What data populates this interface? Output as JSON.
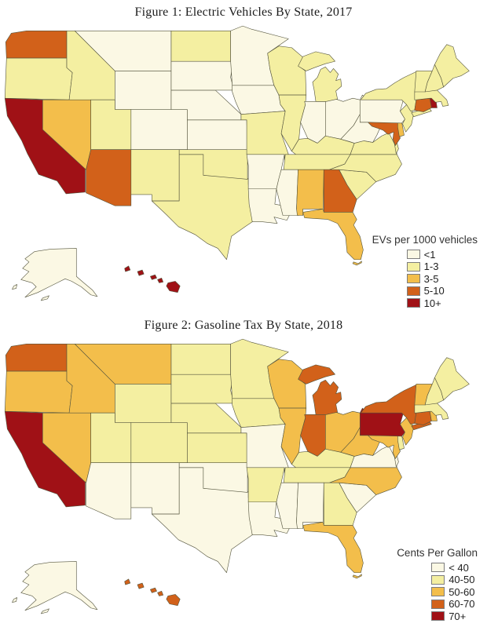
{
  "chart_data": [
    {
      "type": "heatmap",
      "subtype": "us-state-choropleth",
      "title": "Figure 1: Electric Vehicles By State, 2017",
      "legend": {
        "title": "EVs per 1000 vehicles",
        "position": "bottom-right",
        "labels": [
          "<1",
          "1-3",
          "3-5",
          "5-10",
          "10+"
        ],
        "colors": [
          "#FBF8E4",
          "#F4EFA1",
          "#F3BE4B",
          "#D2611A",
          "#A01116"
        ]
      },
      "states": {
        "WA": "5-10",
        "OR": "1-3",
        "CA": "10+",
        "NV": "3-5",
        "ID": "1-3",
        "MT": "<1",
        "WY": "<1",
        "UT": "1-3",
        "CO": "<1",
        "AZ": "5-10",
        "NM": "1-3",
        "ND": "1-3",
        "SD": "<1",
        "NE": "<1",
        "KS": "<1",
        "OK": "1-3",
        "TX": "1-3",
        "MN": "<1",
        "IA": "<1",
        "MO": "1-3",
        "AR": "<1",
        "LA": "<1",
        "WI": "1-3",
        "IL": "1-3",
        "MI": "1-3",
        "IN": "<1",
        "OH": "<1",
        "KY": "1-3",
        "TN": "1-3",
        "MS": "<1",
        "AL": "3-5",
        "GA": "5-10",
        "FL": "3-5",
        "SC": "1-3",
        "NC": "1-3",
        "VA": "1-3",
        "WV": "<1",
        "MD": "5-10",
        "DE": "3-5",
        "NJ": "1-3",
        "PA": "<1",
        "NY": "1-3",
        "VT": "1-3",
        "NH": "1-3",
        "ME": "1-3",
        "MA": "1-3",
        "CT": "5-10",
        "RI": "10+",
        "AK": "<1",
        "HI": "10+"
      }
    },
    {
      "type": "heatmap",
      "subtype": "us-state-choropleth",
      "title": "Figure 2: Gasoline Tax By State, 2018",
      "legend": {
        "title": "Cents Per Gallon",
        "position": "bottom-right",
        "labels": [
          "< 40",
          "40-50",
          "50-60",
          "60-70",
          "70+"
        ],
        "colors": [
          "#FBF8E4",
          "#F4EFA1",
          "#F3BE4B",
          "#D2611A",
          "#A01116"
        ]
      },
      "states": {
        "WA": "60-70",
        "OR": "50-60",
        "CA": "70+",
        "NV": "50-60",
        "ID": "50-60",
        "MT": "50-60",
        "WY": "40-50",
        "UT": "40-50",
        "CO": "40-50",
        "AZ": "< 40",
        "NM": "< 40",
        "ND": "40-50",
        "SD": "40-50",
        "NE": "40-50",
        "KS": "40-50",
        "OK": "< 40",
        "TX": "< 40",
        "MN": "40-50",
        "IA": "40-50",
        "MO": "< 40",
        "AR": "40-50",
        "LA": "< 40",
        "WI": "50-60",
        "IL": "50-60",
        "MI": "60-70",
        "IN": "60-70",
        "OH": "50-60",
        "KY": "40-50",
        "TN": "40-50",
        "MS": "< 40",
        "AL": "< 40",
        "GA": "40-50",
        "FL": "50-60",
        "SC": "< 40",
        "NC": "50-60",
        "VA": "< 40",
        "WV": "50-60",
        "MD": "50-60",
        "DE": "40-50",
        "NJ": "50-60",
        "PA": "70+",
        "NY": "60-70",
        "CT": "60-70",
        "RI": "50-60",
        "MA": "40-50",
        "VT": "50-60",
        "NH": "40-50",
        "ME": "40-50",
        "AK": "< 40",
        "HI": "60-70"
      }
    }
  ]
}
